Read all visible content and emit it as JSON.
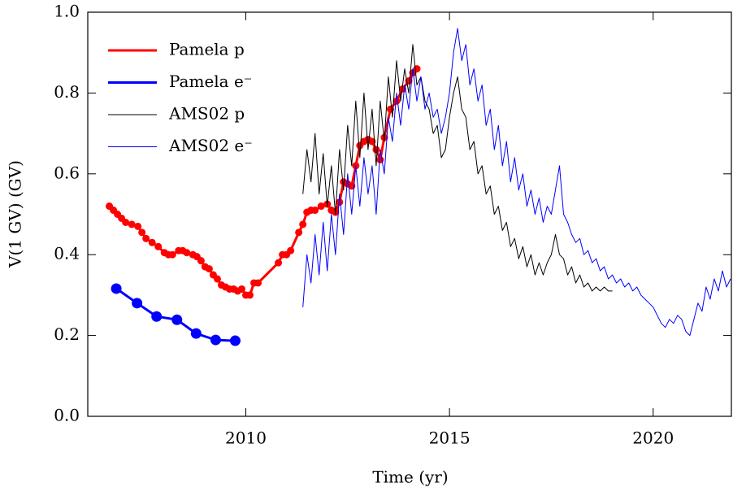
{
  "chart_data": {
    "type": "line",
    "xlabel": "Time (yr)",
    "ylabel": "V(1 GV)  (GV)",
    "xlim": [
      2006.12,
      2021.92
    ],
    "ylim": [
      0,
      1
    ],
    "xticks": [
      2010,
      2015,
      2020
    ],
    "yticks": [
      {
        "value": 0,
        "label": "0.0"
      },
      0.2,
      0.4,
      0.6,
      0.8,
      {
        "value": 1,
        "label": "1.0"
      }
    ],
    "legend": "upper left",
    "series": [
      {
        "name": "Pamela p",
        "color": "#ff0000",
        "marker": "circle",
        "x": [
          2006.65,
          2006.75,
          2006.85,
          2006.95,
          2007.05,
          2007.2,
          2007.35,
          2007.45,
          2007.55,
          2007.7,
          2007.85,
          2008.0,
          2008.1,
          2008.2,
          2008.35,
          2008.45,
          2008.55,
          2008.7,
          2008.8,
          2008.9,
          2009.0,
          2009.1,
          2009.2,
          2009.3,
          2009.4,
          2009.5,
          2009.6,
          2009.7,
          2009.8,
          2009.9,
          2010.0,
          2010.1,
          2010.2,
          2010.3,
          2010.8,
          2010.9,
          2011.0,
          2011.1,
          2011.3,
          2011.4,
          2011.5,
          2011.6,
          2011.7,
          2011.85,
          2012.0,
          2012.1,
          2012.2,
          2012.3,
          2012.4,
          2012.5,
          2012.6,
          2012.7,
          2012.8,
          2012.9,
          2013.0,
          2013.1,
          2013.2,
          2013.3,
          2013.4,
          2013.55,
          2013.7,
          2013.85,
          2014.0,
          2014.1,
          2014.2
        ],
        "values": [
          0.52,
          0.51,
          0.5,
          0.49,
          0.48,
          0.475,
          0.47,
          0.455,
          0.44,
          0.43,
          0.42,
          0.405,
          0.4,
          0.4,
          0.41,
          0.41,
          0.405,
          0.4,
          0.395,
          0.385,
          0.37,
          0.365,
          0.35,
          0.34,
          0.325,
          0.32,
          0.315,
          0.315,
          0.31,
          0.315,
          0.3,
          0.3,
          0.33,
          0.33,
          0.38,
          0.4,
          0.4,
          0.41,
          0.455,
          0.475,
          0.505,
          0.51,
          0.51,
          0.52,
          0.525,
          0.51,
          0.505,
          0.53,
          0.58,
          0.575,
          0.57,
          0.62,
          0.67,
          0.68,
          0.685,
          0.68,
          0.66,
          0.635,
          0.69,
          0.76,
          0.78,
          0.81,
          0.83,
          0.85,
          0.86
        ]
      },
      {
        "name": "Pamela e⁻",
        "color": "#0000ff",
        "marker": "circle",
        "x": [
          2006.82,
          2007.33,
          2007.81,
          2008.31,
          2008.78,
          2009.26,
          2009.74
        ],
        "values": [
          0.316,
          0.28,
          0.247,
          0.239,
          0.205,
          0.189,
          0.187
        ]
      },
      {
        "name": "AMS02 p",
        "color": "#000000",
        "x": [
          2011.4,
          2011.5,
          2011.6,
          2011.7,
          2011.8,
          2011.9,
          2012.0,
          2012.1,
          2012.2,
          2012.3,
          2012.4,
          2012.5,
          2012.6,
          2012.7,
          2012.8,
          2012.9,
          2013.0,
          2013.1,
          2013.2,
          2013.3,
          2013.4,
          2013.5,
          2013.6,
          2013.7,
          2013.8,
          2013.9,
          2014.0,
          2014.1,
          2014.2,
          2014.3,
          2014.4,
          2014.5,
          2014.6,
          2014.7,
          2014.8,
          2014.9,
          2015.0,
          2015.1,
          2015.2,
          2015.3,
          2015.4,
          2015.5,
          2015.6,
          2015.7,
          2015.8,
          2015.9,
          2016.0,
          2016.1,
          2016.2,
          2016.3,
          2016.4,
          2016.5,
          2016.6,
          2016.7,
          2016.8,
          2016.9,
          2017.0,
          2017.1,
          2017.2,
          2017.3,
          2017.4,
          2017.5,
          2017.6,
          2017.7,
          2017.8,
          2017.9,
          2018.0,
          2018.1,
          2018.2,
          2018.3,
          2018.4,
          2018.5,
          2018.6,
          2018.7,
          2018.8,
          2018.9,
          2019.0
        ],
        "values": [
          0.55,
          0.66,
          0.58,
          0.7,
          0.55,
          0.65,
          0.52,
          0.62,
          0.5,
          0.66,
          0.56,
          0.72,
          0.62,
          0.78,
          0.64,
          0.8,
          0.66,
          0.76,
          0.62,
          0.78,
          0.68,
          0.84,
          0.74,
          0.88,
          0.78,
          0.86,
          0.8,
          0.92,
          0.82,
          0.84,
          0.78,
          0.76,
          0.7,
          0.72,
          0.64,
          0.66,
          0.74,
          0.8,
          0.84,
          0.76,
          0.74,
          0.66,
          0.68,
          0.6,
          0.62,
          0.55,
          0.57,
          0.5,
          0.52,
          0.46,
          0.48,
          0.42,
          0.44,
          0.39,
          0.42,
          0.37,
          0.4,
          0.35,
          0.38,
          0.35,
          0.38,
          0.4,
          0.45,
          0.4,
          0.39,
          0.35,
          0.37,
          0.33,
          0.35,
          0.32,
          0.33,
          0.31,
          0.32,
          0.31,
          0.32,
          0.31,
          0.31
        ]
      },
      {
        "name": "AMS02 e⁻",
        "color": "#0000ff",
        "x": [
          2011.4,
          2011.5,
          2011.6,
          2011.7,
          2011.8,
          2011.9,
          2012.0,
          2012.1,
          2012.2,
          2012.3,
          2012.4,
          2012.5,
          2012.6,
          2012.7,
          2012.8,
          2012.9,
          2013.0,
          2013.1,
          2013.2,
          2013.3,
          2013.4,
          2013.5,
          2013.6,
          2013.7,
          2013.8,
          2013.9,
          2014.0,
          2014.1,
          2014.2,
          2014.3,
          2014.4,
          2014.5,
          2014.6,
          2014.7,
          2014.8,
          2014.9,
          2015.0,
          2015.1,
          2015.2,
          2015.3,
          2015.4,
          2015.5,
          2015.6,
          2015.7,
          2015.8,
          2015.9,
          2016.0,
          2016.1,
          2016.2,
          2016.3,
          2016.4,
          2016.5,
          2016.6,
          2016.7,
          2016.8,
          2016.9,
          2017.0,
          2017.1,
          2017.2,
          2017.3,
          2017.4,
          2017.5,
          2017.6,
          2017.7,
          2017.8,
          2017.9,
          2018.0,
          2018.1,
          2018.2,
          2018.3,
          2018.4,
          2018.5,
          2018.6,
          2018.7,
          2018.8,
          2018.9,
          2019.0,
          2019.1,
          2019.2,
          2019.3,
          2019.4,
          2019.5,
          2019.6,
          2019.7,
          2019.8,
          2019.9,
          2020.0,
          2020.1,
          2020.2,
          2020.3,
          2020.4,
          2020.5,
          2020.6,
          2020.7,
          2020.8,
          2020.9,
          2021.0,
          2021.1,
          2021.2,
          2021.3,
          2021.4,
          2021.5,
          2021.6,
          2021.7,
          2021.8,
          2021.9
        ],
        "values": [
          0.27,
          0.4,
          0.33,
          0.45,
          0.35,
          0.48,
          0.36,
          0.5,
          0.4,
          0.55,
          0.45,
          0.6,
          0.5,
          0.62,
          0.52,
          0.64,
          0.55,
          0.62,
          0.5,
          0.66,
          0.6,
          0.74,
          0.68,
          0.8,
          0.72,
          0.82,
          0.76,
          0.86,
          0.78,
          0.84,
          0.76,
          0.8,
          0.74,
          0.76,
          0.7,
          0.74,
          0.8,
          0.9,
          0.96,
          0.88,
          0.92,
          0.82,
          0.86,
          0.78,
          0.82,
          0.72,
          0.76,
          0.66,
          0.72,
          0.62,
          0.68,
          0.58,
          0.64,
          0.56,
          0.6,
          0.52,
          0.56,
          0.5,
          0.54,
          0.48,
          0.52,
          0.5,
          0.56,
          0.62,
          0.5,
          0.48,
          0.45,
          0.43,
          0.44,
          0.4,
          0.41,
          0.38,
          0.39,
          0.36,
          0.37,
          0.34,
          0.35,
          0.33,
          0.34,
          0.32,
          0.33,
          0.31,
          0.32,
          0.3,
          0.29,
          0.28,
          0.27,
          0.25,
          0.23,
          0.22,
          0.24,
          0.23,
          0.25,
          0.24,
          0.21,
          0.2,
          0.24,
          0.28,
          0.26,
          0.32,
          0.29,
          0.34,
          0.31,
          0.36,
          0.32,
          0.34
        ]
      }
    ]
  }
}
